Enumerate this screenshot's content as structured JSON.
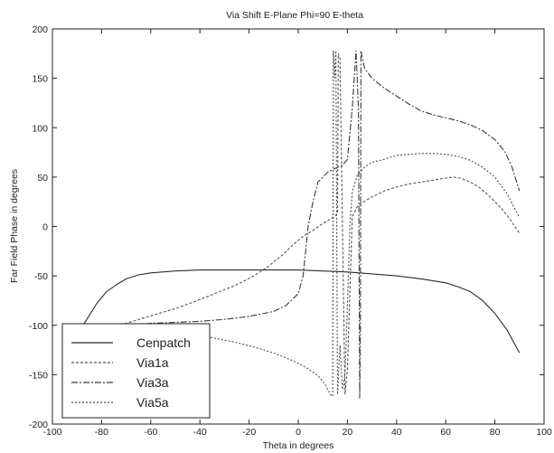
{
  "chart_data": {
    "type": "line",
    "title": "Via Shift E-Plane Phi=90 E-theta",
    "xlabel": "Theta in degrees",
    "ylabel": "Far Field Phase in degrees",
    "xlim": [
      -100,
      100
    ],
    "ylim": [
      -200,
      200
    ],
    "xticks": [
      -100,
      -80,
      -60,
      -40,
      -20,
      0,
      20,
      40,
      60,
      80,
      100
    ],
    "yticks": [
      -200,
      -150,
      -100,
      -50,
      0,
      50,
      100,
      150,
      200
    ],
    "grid": false,
    "legend_position": "bottom-left",
    "series": [
      {
        "name": "Cenpatch",
        "color": "#2b2b2b",
        "dash": "solid",
        "points": [
          [
            -90,
            -110
          ],
          [
            -86,
            -94
          ],
          [
            -82,
            -78
          ],
          [
            -78,
            -66
          ],
          [
            -74,
            -59
          ],
          [
            -70,
            -53
          ],
          [
            -65,
            -49
          ],
          [
            -60,
            -47
          ],
          [
            -50,
            -45
          ],
          [
            -40,
            -44
          ],
          [
            -30,
            -44
          ],
          [
            -20,
            -44
          ],
          [
            -10,
            -44
          ],
          [
            0,
            -44
          ],
          [
            10,
            -45
          ],
          [
            20,
            -46
          ],
          [
            30,
            -48
          ],
          [
            40,
            -50
          ],
          [
            50,
            -53
          ],
          [
            60,
            -57
          ],
          [
            65,
            -61
          ],
          [
            70,
            -66
          ],
          [
            75,
            -75
          ],
          [
            80,
            -88
          ],
          [
            85,
            -105
          ],
          [
            90,
            -128
          ]
        ]
      },
      {
        "name": "Via1a",
        "color": "#555555",
        "dash": "3,2",
        "points": [
          [
            -90,
            -113
          ],
          [
            -82,
            -107
          ],
          [
            -74,
            -101
          ],
          [
            -66,
            -95
          ],
          [
            -58,
            -89
          ],
          [
            -50,
            -83
          ],
          [
            -42,
            -76
          ],
          [
            -34,
            -68
          ],
          [
            -26,
            -60
          ],
          [
            -18,
            -50
          ],
          [
            -12,
            -40
          ],
          [
            -6,
            -28
          ],
          [
            -2,
            -18
          ],
          [
            2,
            -10
          ],
          [
            6,
            -4
          ],
          [
            10,
            3
          ],
          [
            14,
            9
          ],
          [
            16,
            13
          ],
          [
            16.3,
            175
          ],
          [
            17,
            170
          ],
          [
            19,
            -170
          ],
          [
            20,
            -145
          ],
          [
            22,
            10
          ],
          [
            24,
            20
          ],
          [
            26,
            24
          ],
          [
            30,
            30
          ],
          [
            35,
            36
          ],
          [
            40,
            40
          ],
          [
            45,
            43
          ],
          [
            50,
            45
          ],
          [
            55,
            47
          ],
          [
            60,
            49
          ],
          [
            63,
            50
          ],
          [
            66,
            49
          ],
          [
            70,
            45
          ],
          [
            74,
            39
          ],
          [
            78,
            30
          ],
          [
            82,
            20
          ],
          [
            86,
            8
          ],
          [
            90,
            -7
          ]
        ]
      },
      {
        "name": "Via3a",
        "color": "#3a3a3a",
        "dash": "7,2,2,2",
        "points": [
          [
            -85,
            -112
          ],
          [
            -80,
            -104
          ],
          [
            -70,
            -100
          ],
          [
            -60,
            -98
          ],
          [
            -50,
            -97
          ],
          [
            -40,
            -96
          ],
          [
            -30,
            -94
          ],
          [
            -20,
            -91
          ],
          [
            -10,
            -86
          ],
          [
            -5,
            -80
          ],
          [
            0,
            -68
          ],
          [
            2,
            -50
          ],
          [
            3,
            -25
          ],
          [
            4,
            0
          ],
          [
            6,
            25
          ],
          [
            8,
            45
          ],
          [
            12,
            55
          ],
          [
            16,
            60
          ],
          [
            18,
            62
          ],
          [
            19,
            65
          ],
          [
            20,
            68
          ],
          [
            22,
            120
          ],
          [
            23.5,
            178
          ],
          [
            24.5,
            120
          ],
          [
            25,
            -174
          ],
          [
            25.3,
            -100
          ],
          [
            25.5,
            178
          ],
          [
            27,
            160
          ],
          [
            30,
            150
          ],
          [
            35,
            140
          ],
          [
            40,
            132
          ],
          [
            45,
            124
          ],
          [
            50,
            117
          ],
          [
            55,
            113
          ],
          [
            60,
            110
          ],
          [
            65,
            107
          ],
          [
            70,
            103
          ],
          [
            75,
            97
          ],
          [
            80,
            88
          ],
          [
            84,
            76
          ],
          [
            87,
            60
          ],
          [
            90,
            36
          ]
        ]
      },
      {
        "name": "Via5a",
        "color": "#4a4a4a",
        "dash": "2,2",
        "points": [
          [
            -88,
            -104
          ],
          [
            -82,
            -100
          ],
          [
            -74,
            -100
          ],
          [
            -66,
            -101
          ],
          [
            -58,
            -103
          ],
          [
            -50,
            -106
          ],
          [
            -42,
            -109
          ],
          [
            -34,
            -113
          ],
          [
            -26,
            -117
          ],
          [
            -18,
            -122
          ],
          [
            -10,
            -128
          ],
          [
            -2,
            -136
          ],
          [
            4,
            -144
          ],
          [
            8,
            -151
          ],
          [
            11,
            -160
          ],
          [
            13,
            -170
          ],
          [
            14,
            -172
          ],
          [
            14.3,
            178
          ],
          [
            14.8,
            150
          ],
          [
            15.3,
            178
          ],
          [
            16,
            -170
          ],
          [
            17,
            -120
          ],
          [
            18,
            -165
          ],
          [
            19,
            -150
          ],
          [
            20,
            -80
          ],
          [
            21,
            0
          ],
          [
            22,
            35
          ],
          [
            24,
            52
          ],
          [
            27,
            60
          ],
          [
            30,
            65
          ],
          [
            35,
            68
          ],
          [
            40,
            72
          ],
          [
            45,
            73
          ],
          [
            50,
            74
          ],
          [
            55,
            74
          ],
          [
            60,
            73
          ],
          [
            65,
            71
          ],
          [
            70,
            67
          ],
          [
            75,
            60
          ],
          [
            80,
            50
          ],
          [
            85,
            33
          ],
          [
            90,
            9
          ]
        ]
      }
    ]
  }
}
